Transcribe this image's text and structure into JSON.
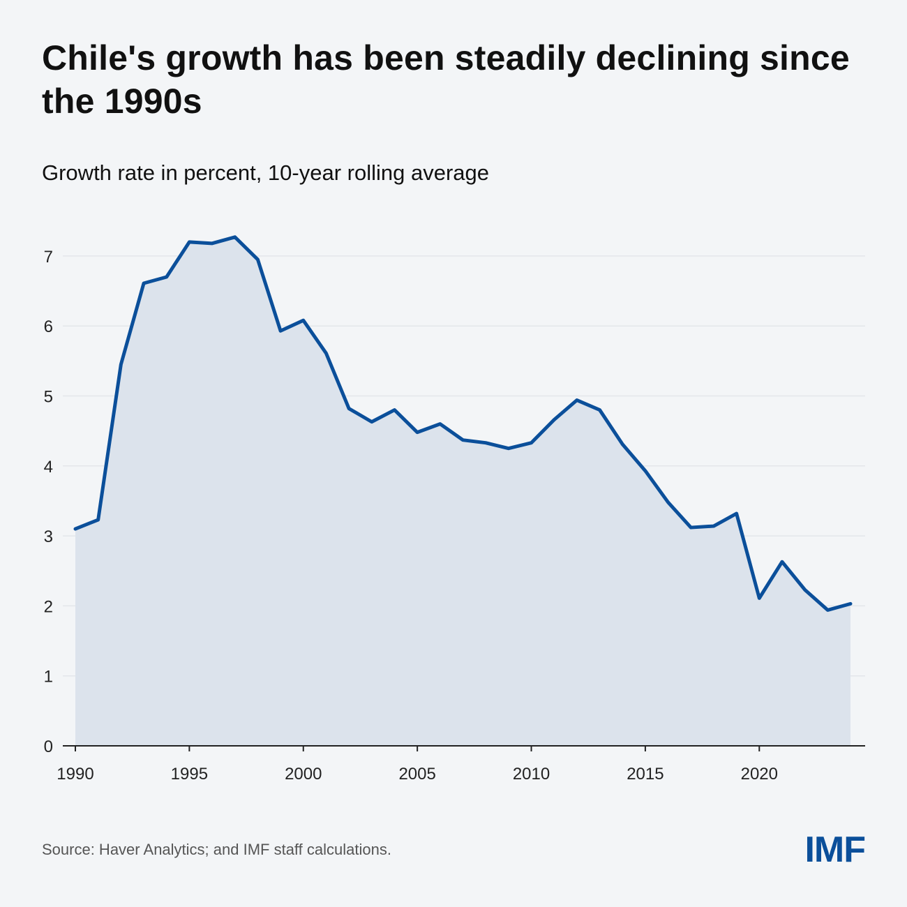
{
  "title": "Chile's growth has been steadily declining since the 1990s",
  "subtitle": "Growth rate in percent, 10-year rolling average",
  "source": "Source: Haver Analytics; and IMF staff calculations.",
  "logo": "IMF",
  "colors": {
    "line": "#0b4f9a",
    "fill": "#dce3ec",
    "background": "#f3f5f7",
    "grid": "#e3e6ea"
  },
  "chart_data": {
    "type": "area",
    "title": "Chile's growth has been steadily declining since the 1990s",
    "ylabel": "Growth rate in percent, 10-year rolling average",
    "xlabel": "",
    "xlim": [
      1990,
      2024
    ],
    "ylim": [
      0,
      7.5
    ],
    "grid": true,
    "x_ticks": [
      "1990",
      "1995",
      "2000",
      "2005",
      "2010",
      "2015",
      "2020"
    ],
    "y_ticks": [
      "0",
      "1",
      "2",
      "3",
      "4",
      "5",
      "6",
      "7"
    ],
    "x": [
      1990,
      1991,
      1992,
      1993,
      1994,
      1995,
      1996,
      1997,
      1998,
      1999,
      2000,
      2001,
      2002,
      2003,
      2004,
      2005,
      2006,
      2007,
      2008,
      2009,
      2010,
      2011,
      2012,
      2013,
      2014,
      2015,
      2016,
      2017,
      2018,
      2019,
      2020,
      2021,
      2022,
      2023,
      2024
    ],
    "values": [
      3.1,
      3.23,
      5.45,
      6.61,
      6.7,
      7.2,
      7.18,
      7.27,
      6.95,
      5.93,
      6.08,
      5.61,
      4.82,
      4.63,
      4.8,
      4.48,
      4.6,
      4.37,
      4.33,
      4.25,
      4.33,
      4.66,
      4.94,
      4.8,
      4.31,
      3.93,
      3.48,
      3.12,
      3.14,
      3.32,
      2.11,
      2.63,
      2.23,
      1.94,
      2.03
    ]
  }
}
